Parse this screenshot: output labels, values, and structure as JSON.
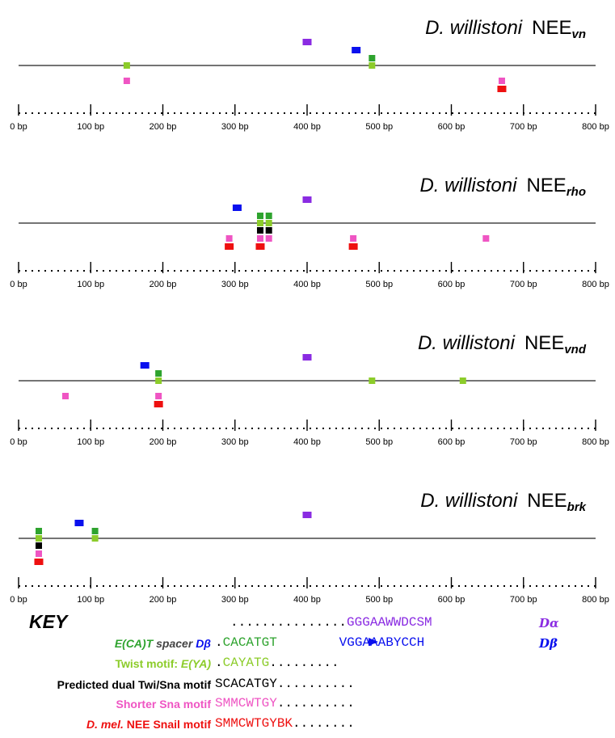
{
  "colors": {
    "purple": "#8a2be2",
    "blue": "#0a10ee",
    "dark_green": "#2ea32e",
    "light_green": "#8ccc2a",
    "black": "#000000",
    "pink": "#ef55c3",
    "red": "#ee1010",
    "grey_dark": "#444444"
  },
  "axis": {
    "min_bp": 0,
    "max_bp": 800,
    "tick_step_bp": 100,
    "tick_label_suffix": " bp"
  },
  "panels": [
    {
      "species": "D. willistoni",
      "element_prefix": "NEE",
      "element_subscript": "vn",
      "motifs": [
        {
          "motif": "purple",
          "pos_bp": 400,
          "row": 3
        },
        {
          "motif": "blue",
          "pos_bp": 468,
          "row": 2
        },
        {
          "motif": "dark_green",
          "pos_bp": 490,
          "row": 1
        },
        {
          "motif": "light_green",
          "pos_bp": 490,
          "row": 0
        },
        {
          "motif": "light_green",
          "pos_bp": 150,
          "row": 0
        },
        {
          "motif": "pink",
          "pos_bp": 150,
          "row": -2
        },
        {
          "motif": "pink",
          "pos_bp": 670,
          "row": -2
        },
        {
          "motif": "red",
          "pos_bp": 670,
          "row": -3
        }
      ]
    },
    {
      "species": "D. willistoni",
      "element_prefix": "NEE",
      "element_subscript": "rho",
      "motifs": [
        {
          "motif": "purple",
          "pos_bp": 400,
          "row": 3
        },
        {
          "motif": "blue",
          "pos_bp": 303,
          "row": 2
        },
        {
          "motif": "dark_green",
          "pos_bp": 335,
          "row": 1
        },
        {
          "motif": "dark_green",
          "pos_bp": 347,
          "row": 1
        },
        {
          "motif": "light_green",
          "pos_bp": 335,
          "row": 0
        },
        {
          "motif": "light_green",
          "pos_bp": 347,
          "row": 0
        },
        {
          "motif": "black",
          "pos_bp": 335,
          "row": -1
        },
        {
          "motif": "black",
          "pos_bp": 347,
          "row": -1
        },
        {
          "motif": "pink",
          "pos_bp": 292,
          "row": -2
        },
        {
          "motif": "pink",
          "pos_bp": 335,
          "row": -2
        },
        {
          "motif": "pink",
          "pos_bp": 347,
          "row": -2
        },
        {
          "motif": "pink",
          "pos_bp": 464,
          "row": -2
        },
        {
          "motif": "pink",
          "pos_bp": 648,
          "row": -2
        },
        {
          "motif": "red",
          "pos_bp": 292,
          "row": -3
        },
        {
          "motif": "red",
          "pos_bp": 335,
          "row": -3
        },
        {
          "motif": "red",
          "pos_bp": 464,
          "row": -3
        }
      ]
    },
    {
      "species": "D. willistoni",
      "element_prefix": "NEE",
      "element_subscript": "vnd",
      "motifs": [
        {
          "motif": "purple",
          "pos_bp": 400,
          "row": 3
        },
        {
          "motif": "blue",
          "pos_bp": 175,
          "row": 2
        },
        {
          "motif": "dark_green",
          "pos_bp": 194,
          "row": 1
        },
        {
          "motif": "light_green",
          "pos_bp": 194,
          "row": 0
        },
        {
          "motif": "light_green",
          "pos_bp": 490,
          "row": 0
        },
        {
          "motif": "light_green",
          "pos_bp": 616,
          "row": 0
        },
        {
          "motif": "pink",
          "pos_bp": 65,
          "row": -2
        },
        {
          "motif": "pink",
          "pos_bp": 194,
          "row": -2
        },
        {
          "motif": "red",
          "pos_bp": 194,
          "row": -3
        }
      ]
    },
    {
      "species": "D. willistoni",
      "element_prefix": "NEE",
      "element_subscript": "brk",
      "motifs": [
        {
          "motif": "purple",
          "pos_bp": 400,
          "row": 3
        },
        {
          "motif": "blue",
          "pos_bp": 84,
          "row": 2
        },
        {
          "motif": "dark_green",
          "pos_bp": 28,
          "row": 1
        },
        {
          "motif": "dark_green",
          "pos_bp": 106,
          "row": 1
        },
        {
          "motif": "light_green",
          "pos_bp": 28,
          "row": 0
        },
        {
          "motif": "light_green",
          "pos_bp": 106,
          "row": 0
        },
        {
          "motif": "black",
          "pos_bp": 28,
          "row": -1
        },
        {
          "motif": "pink",
          "pos_bp": 28,
          "row": -2
        },
        {
          "motif": "red",
          "pos_bp": 28,
          "row": -3
        }
      ]
    }
  ],
  "key": {
    "heading": "KEY",
    "rows": [
      {
        "label_parts": [],
        "lead_dots": "...............",
        "seq": "GGGAAWWDCSM",
        "trail_dots": "",
        "seq_color": "purple",
        "side_label": "Dα",
        "side_color": "purple"
      },
      {
        "label_parts": [
          {
            "text": "E(CA)T",
            "color": "dark_green",
            "italic": true
          },
          {
            "text": " spacer ",
            "color": "grey_dark",
            "italic": true
          },
          {
            "text": "Dβ",
            "color": "blue",
            "italic": true
          }
        ],
        "lead_dots": ".",
        "seq": "CACATGT",
        "trail_dots": "",
        "seq_color": "dark_green",
        "side_label": "",
        "side_color": "blue"
      },
      {
        "label_parts": [
          {
            "text": "Twist motif: ",
            "color": "light_green",
            "italic": false
          },
          {
            "text": "E(YA)",
            "color": "light_green",
            "italic": true
          }
        ],
        "lead_dots": ".",
        "seq": "CAYATG",
        "trail_dots": ".........",
        "seq_color": "light_green",
        "side_label": "",
        "side_color": ""
      },
      {
        "label_parts": [
          {
            "text": "Predicted dual Twi/Sna motif",
            "color": "black",
            "italic": false
          }
        ],
        "lead_dots": "",
        "seq": "SCACATGY",
        "trail_dots": "..........",
        "seq_color": "black",
        "side_label": "",
        "side_color": ""
      },
      {
        "label_parts": [
          {
            "text": "Shorter Sna motif",
            "color": "pink",
            "italic": false
          }
        ],
        "lead_dots": "",
        "seq": "SMMCWTGY",
        "trail_dots": "..........",
        "seq_color": "pink",
        "side_label": "",
        "side_color": ""
      },
      {
        "label_parts": [
          {
            "text": "D. mel.",
            "color": "red",
            "italic": true
          },
          {
            "text": " NEE Snail motif",
            "color": "red",
            "italic": false
          }
        ],
        "lead_dots": "",
        "seq": "SMMCWTGYBK",
        "trail_dots": "........",
        "seq_color": "red",
        "side_label": "",
        "side_color": ""
      }
    ],
    "spacer_target": {
      "seq": "VGGAAABYCCH",
      "seq_color": "blue",
      "side_label": "Dβ",
      "side_color": "blue"
    }
  }
}
